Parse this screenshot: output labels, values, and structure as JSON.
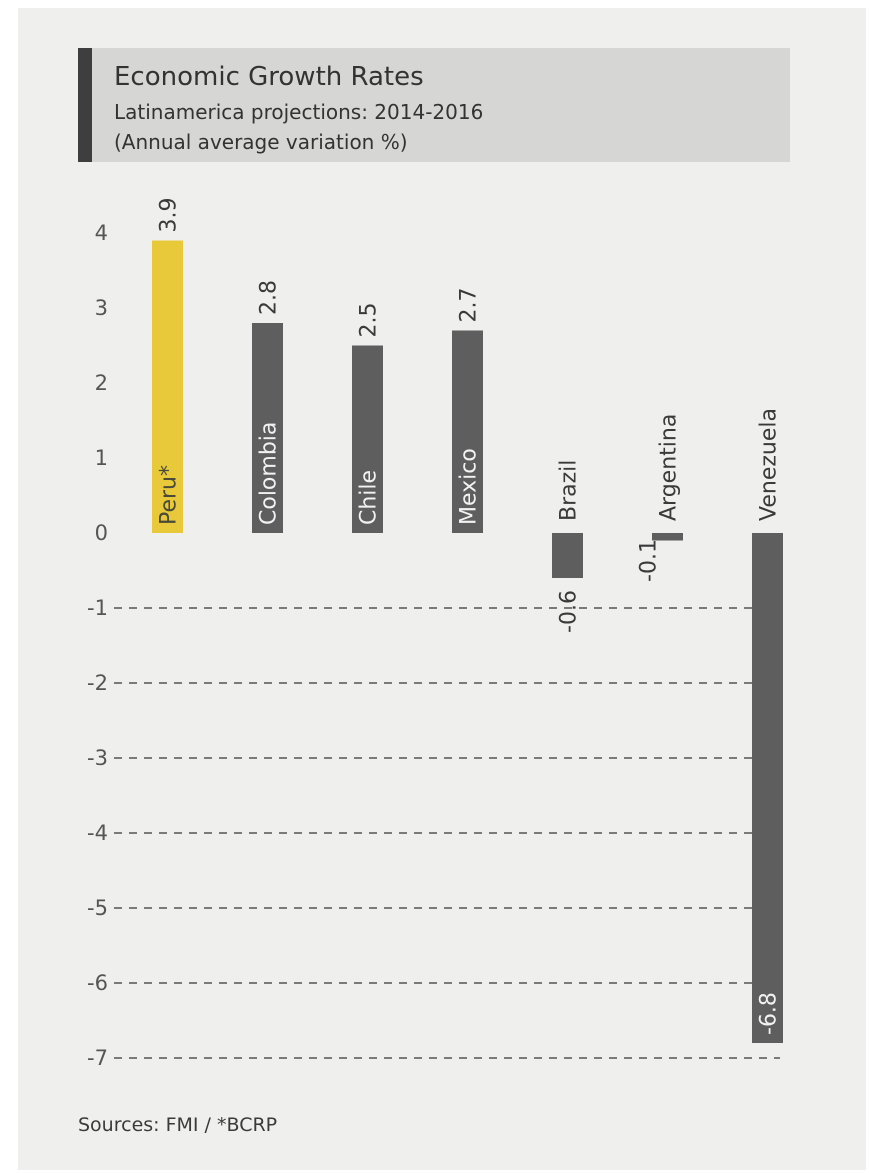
{
  "chart_data": {
    "type": "bar",
    "title": "Economic Growth Rates",
    "subtitle": "Latinamerica projections: 2014-2016",
    "units": "(Annual average variation %)",
    "categories": [
      "Peru*",
      "Colombia",
      "Chile",
      "Mexico",
      "Brazil",
      "Argentina",
      "Venezuela"
    ],
    "values": [
      3.9,
      2.8,
      2.5,
      2.7,
      -0.6,
      -0.1,
      -6.8
    ],
    "value_labels": [
      "3.9",
      "2.8",
      "2.5",
      "2.7",
      "-0.6",
      "-0.1",
      "-6.8"
    ],
    "highlight_category": "Peru*",
    "y_ticks": [
      "4",
      "3",
      "2",
      "1",
      "0",
      "-1",
      "-2",
      "-3",
      "-4",
      "-5",
      "-6",
      "-7"
    ],
    "ylim": [
      -7,
      4
    ],
    "grid": "dashed horizontal lines below zero",
    "colors": {
      "highlight": "#e8c93a",
      "bar": "#5e5e5e",
      "background": "#efefed",
      "title_band": "#d6d6d4",
      "accent_bar": "#3e3e3e"
    }
  },
  "source_note": "Sources: FMI / *BCRP"
}
